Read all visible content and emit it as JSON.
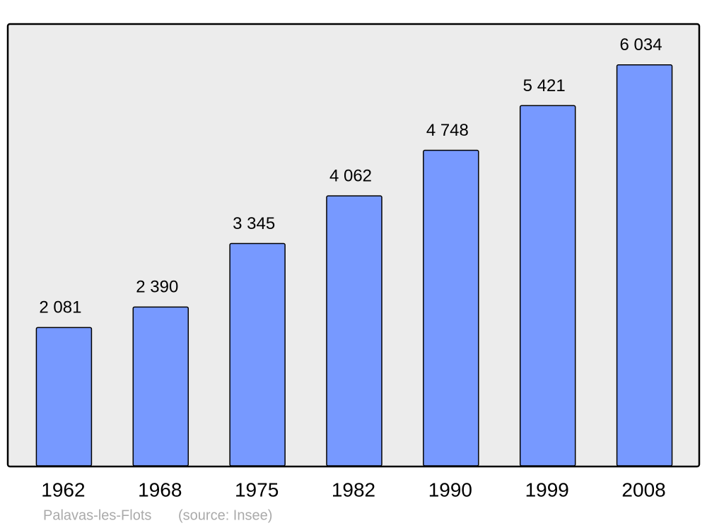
{
  "chart_data": {
    "type": "bar",
    "categories": [
      "1962",
      "1968",
      "1975",
      "1982",
      "1990",
      "1999",
      "2008"
    ],
    "values": [
      2081,
      2390,
      3345,
      4062,
      4748,
      5421,
      6034
    ],
    "value_labels": [
      "2 081",
      "2 390",
      "3 345",
      "4 062",
      "4 748",
      "5 421",
      "6 034"
    ],
    "color": "#7799ff",
    "subtitle": "Palavas-les-Flots",
    "source": "(source: Insee)"
  }
}
